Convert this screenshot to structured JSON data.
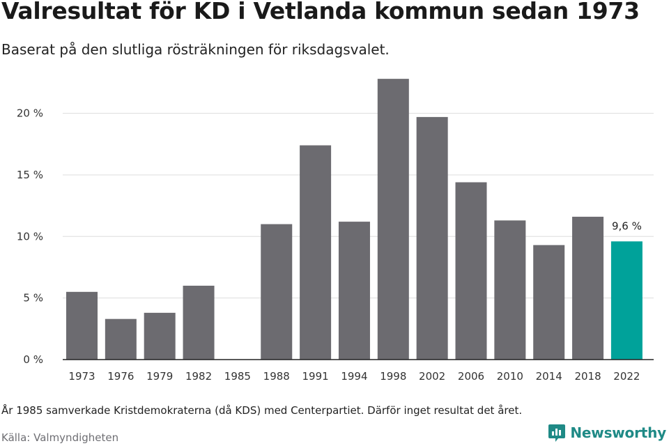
{
  "header": {
    "title": "Valresultat för KD i Vetlanda kommun sedan 1973",
    "subtitle": "Baserat på den slutliga rösträkningen för riksdagsvalet."
  },
  "footer": {
    "note": "År 1985 samverkade Kristdemokraterna (då KDS) med Centerpartiet. Därför inget resultat det året.",
    "source": "Källa: Valmyndigheten",
    "brand": "Newsworthy"
  },
  "colors": {
    "bar": "#6c6b70",
    "highlight": "#00a29a",
    "grid": "#dddddd",
    "axis": "#222222",
    "brand": "#1f8a86"
  },
  "chart_data": {
    "type": "bar",
    "categories": [
      "1973",
      "1976",
      "1979",
      "1982",
      "1985",
      "1988",
      "1991",
      "1994",
      "1998",
      "2002",
      "2006",
      "2010",
      "2014",
      "2018",
      "2022"
    ],
    "values": [
      5.5,
      3.3,
      3.8,
      6.0,
      null,
      11.0,
      17.4,
      11.2,
      22.8,
      19.7,
      14.4,
      11.3,
      9.3,
      11.6,
      9.6
    ],
    "highlight_index": 14,
    "highlight_label": "9,6 %",
    "ylim": [
      0,
      23
    ],
    "yticks": [
      0,
      5,
      10,
      15,
      20
    ],
    "ytick_labels": [
      "0 %",
      "5 %",
      "10 %",
      "15 %",
      "20 %"
    ],
    "grid": true,
    "title": "Valresultat för KD i Vetlanda kommun sedan 1973",
    "subtitle": "Baserat på den slutliga rösträkningen för riksdagsvalet.",
    "xlabel": "",
    "ylabel": ""
  }
}
